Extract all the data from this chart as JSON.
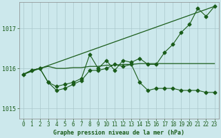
{
  "title": "Graphe pression niveau de la mer (hPa)",
  "background_color": "#cce8ec",
  "grid_color": "#aac8cc",
  "line_color": "#1a5c1a",
  "xlim": [
    -0.5,
    23.5
  ],
  "ylim": [
    1014.75,
    1017.65
  ],
  "yticks": [
    1015,
    1016,
    1017
  ],
  "xticks": [
    0,
    1,
    2,
    3,
    4,
    5,
    6,
    7,
    8,
    9,
    10,
    11,
    12,
    13,
    14,
    15,
    16,
    17,
    18,
    19,
    20,
    21,
    22,
    23
  ],
  "trend_x": [
    0,
    23
  ],
  "trend_y": [
    1015.85,
    1017.55
  ],
  "series_up_x": [
    0,
    1,
    2,
    3,
    4,
    5,
    6,
    7,
    8,
    9,
    10,
    11,
    12,
    13,
    14,
    15,
    16,
    17,
    18,
    19,
    20,
    21,
    22,
    23
  ],
  "series_up_y": [
    1015.85,
    1015.95,
    1016.0,
    1015.65,
    1015.55,
    1015.6,
    1015.65,
    1015.75,
    1016.35,
    1016.0,
    1016.2,
    1015.95,
    1016.2,
    1016.15,
    1016.25,
    1016.1,
    1016.1,
    1016.4,
    1016.6,
    1016.9,
    1017.1,
    1017.5,
    1017.3,
    1017.55
  ],
  "series_flat_x": [
    0,
    1,
    2,
    3,
    4,
    5,
    6,
    7,
    8,
    9,
    10,
    11,
    12,
    13,
    14,
    15,
    16,
    17,
    18,
    19,
    20,
    21,
    22,
    23
  ],
  "series_flat_y": [
    1015.85,
    1015.95,
    1016.0,
    1016.05,
    1016.0,
    1016.0,
    1016.02,
    1016.02,
    1016.05,
    1016.05,
    1016.08,
    1016.08,
    1016.1,
    1016.1,
    1016.12,
    1016.12,
    1016.12,
    1016.12,
    1016.12,
    1016.12,
    1016.12,
    1016.12,
    1016.12,
    1016.12
  ],
  "series_down_x": [
    0,
    1,
    2,
    3,
    4,
    5,
    6,
    7,
    8,
    9,
    10,
    11,
    12,
    13,
    14,
    15,
    16,
    17,
    18,
    19,
    20,
    21,
    22,
    23
  ],
  "series_down_y": [
    1015.85,
    1015.95,
    1016.0,
    1015.65,
    1015.45,
    1015.5,
    1015.6,
    1015.7,
    1015.95,
    1015.95,
    1016.0,
    1016.1,
    1016.05,
    1016.1,
    1015.65,
    1015.45,
    1015.5,
    1015.5,
    1015.5,
    1015.45,
    1015.45,
    1015.45,
    1015.4,
    1015.4
  ]
}
